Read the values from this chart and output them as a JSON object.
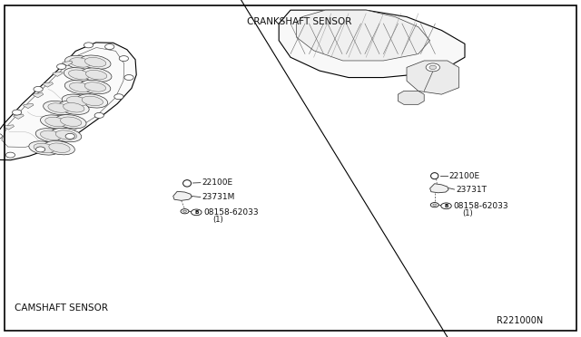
{
  "background_color": "#ffffff",
  "border_color": "#000000",
  "label_crankshaft": "CRANKSHAFT SENSOR",
  "label_camshaft": "CAMSHAFT SENSOR",
  "label_ref": "R221000N",
  "figsize": [
    6.4,
    3.72
  ],
  "dpi": 100,
  "divider_line": [
    [
      0.415,
      1.0
    ],
    [
      0.77,
      0.0
    ]
  ],
  "text_color": "#111111",
  "lw_thin": 0.5,
  "lw_med": 0.8,
  "lw_thick": 1.0,
  "engine_color": "#000000",
  "engine_face": "#ffffff",
  "label_font": 6.5,
  "section_font": 7.5,
  "ref_font": 7.0,
  "camshaft_parts": {
    "22100E": {
      "dot": [
        0.323,
        0.455
      ],
      "label": [
        0.338,
        0.462
      ],
      "text": "22100E"
    },
    "23731M": {
      "dot": [
        0.325,
        0.415
      ],
      "label": [
        0.34,
        0.408
      ],
      "text": "23731M"
    },
    "08158M": {
      "dot": [
        0.323,
        0.36
      ],
      "label": [
        0.338,
        0.353
      ],
      "text": "08158-62033",
      "sub": "(1)"
    }
  },
  "crankshaft_parts": {
    "22100E": {
      "dot": [
        0.755,
        0.478
      ],
      "label": [
        0.773,
        0.478
      ],
      "text": "22100E"
    },
    "23731T": {
      "dot": [
        0.77,
        0.435
      ],
      "label": [
        0.783,
        0.435
      ],
      "text": "23731T"
    },
    "08158T": {
      "dot": [
        0.755,
        0.375
      ],
      "label": [
        0.77,
        0.368
      ],
      "text": "08158-62033",
      "sub": "(1)"
    }
  }
}
